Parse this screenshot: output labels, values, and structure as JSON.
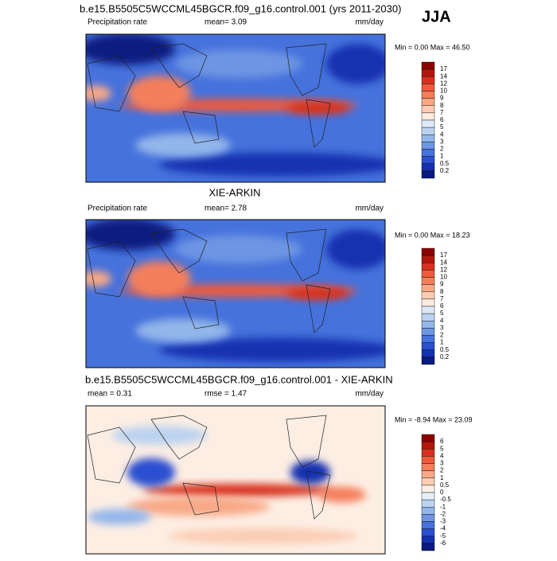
{
  "season": "JJA",
  "panels": [
    {
      "title": "b.e15.B5505C5WCCML45BGCR.f09_g16.control.001 (yrs 2011-2030)",
      "left": "Precipitation rate",
      "center": "mean=   3.09",
      "right": "mm/day",
      "minmax": "Min =   0.00 Max =  46.50",
      "colorbar": {
        "labels": [
          "17",
          "14",
          "12",
          "10",
          "9",
          "8",
          "7",
          "6",
          "5",
          "4",
          "3",
          "2",
          "1",
          "0.5",
          "0.2"
        ],
        "colors": [
          "#8b0000",
          "#b3160d",
          "#d7301f",
          "#ef5a3a",
          "#f47f5b",
          "#f8a886",
          "#fbcdb3",
          "#fdecdf",
          "#dde9f7",
          "#bcd3f0",
          "#93b6ea",
          "#6d95e3",
          "#4672dc",
          "#2a4fd0",
          "#1530b0",
          "#0a1a80"
        ]
      }
    },
    {
      "title": "XIE-ARKIN",
      "left": "Precipitation rate",
      "center": "mean=   2.78",
      "right": "mm/day",
      "minmax": "Min =   0.00 Max =  18.23",
      "colorbar": {
        "labels": [
          "17",
          "14",
          "12",
          "10",
          "9",
          "8",
          "7",
          "6",
          "5",
          "4",
          "3",
          "2",
          "1",
          "0.5",
          "0.2"
        ],
        "colors": [
          "#8b0000",
          "#b3160d",
          "#d7301f",
          "#ef5a3a",
          "#f47f5b",
          "#f8a886",
          "#fbcdb3",
          "#fdecdf",
          "#dde9f7",
          "#bcd3f0",
          "#93b6ea",
          "#6d95e3",
          "#4672dc",
          "#2a4fd0",
          "#1530b0",
          "#0a1a80"
        ]
      }
    },
    {
      "title": "b.e15.B5505C5WCCML45BGCR.f09_g16.control.001 - XIE-ARKIN",
      "left": "mean =   0.31",
      "center": "rmse =   1.47",
      "right": "mm/day",
      "minmax": "Min =  -8.94 Max =  23.09",
      "colorbar": {
        "labels": [
          "6",
          "5",
          "4",
          "3",
          "2",
          "1",
          "0.5",
          "0",
          "-0.5",
          "-1",
          "-2",
          "-3",
          "-4",
          "-5",
          "-6"
        ],
        "colors": [
          "#8b0000",
          "#b3160d",
          "#d7301f",
          "#ef5a3a",
          "#f47f5b",
          "#f8a886",
          "#fbcdb3",
          "#fdeee4",
          "#e4eef9",
          "#bcd3f0",
          "#93b6ea",
          "#6d95e3",
          "#4672dc",
          "#2a4fd0",
          "#1530b0",
          "#0a1a80"
        ]
      }
    }
  ]
}
